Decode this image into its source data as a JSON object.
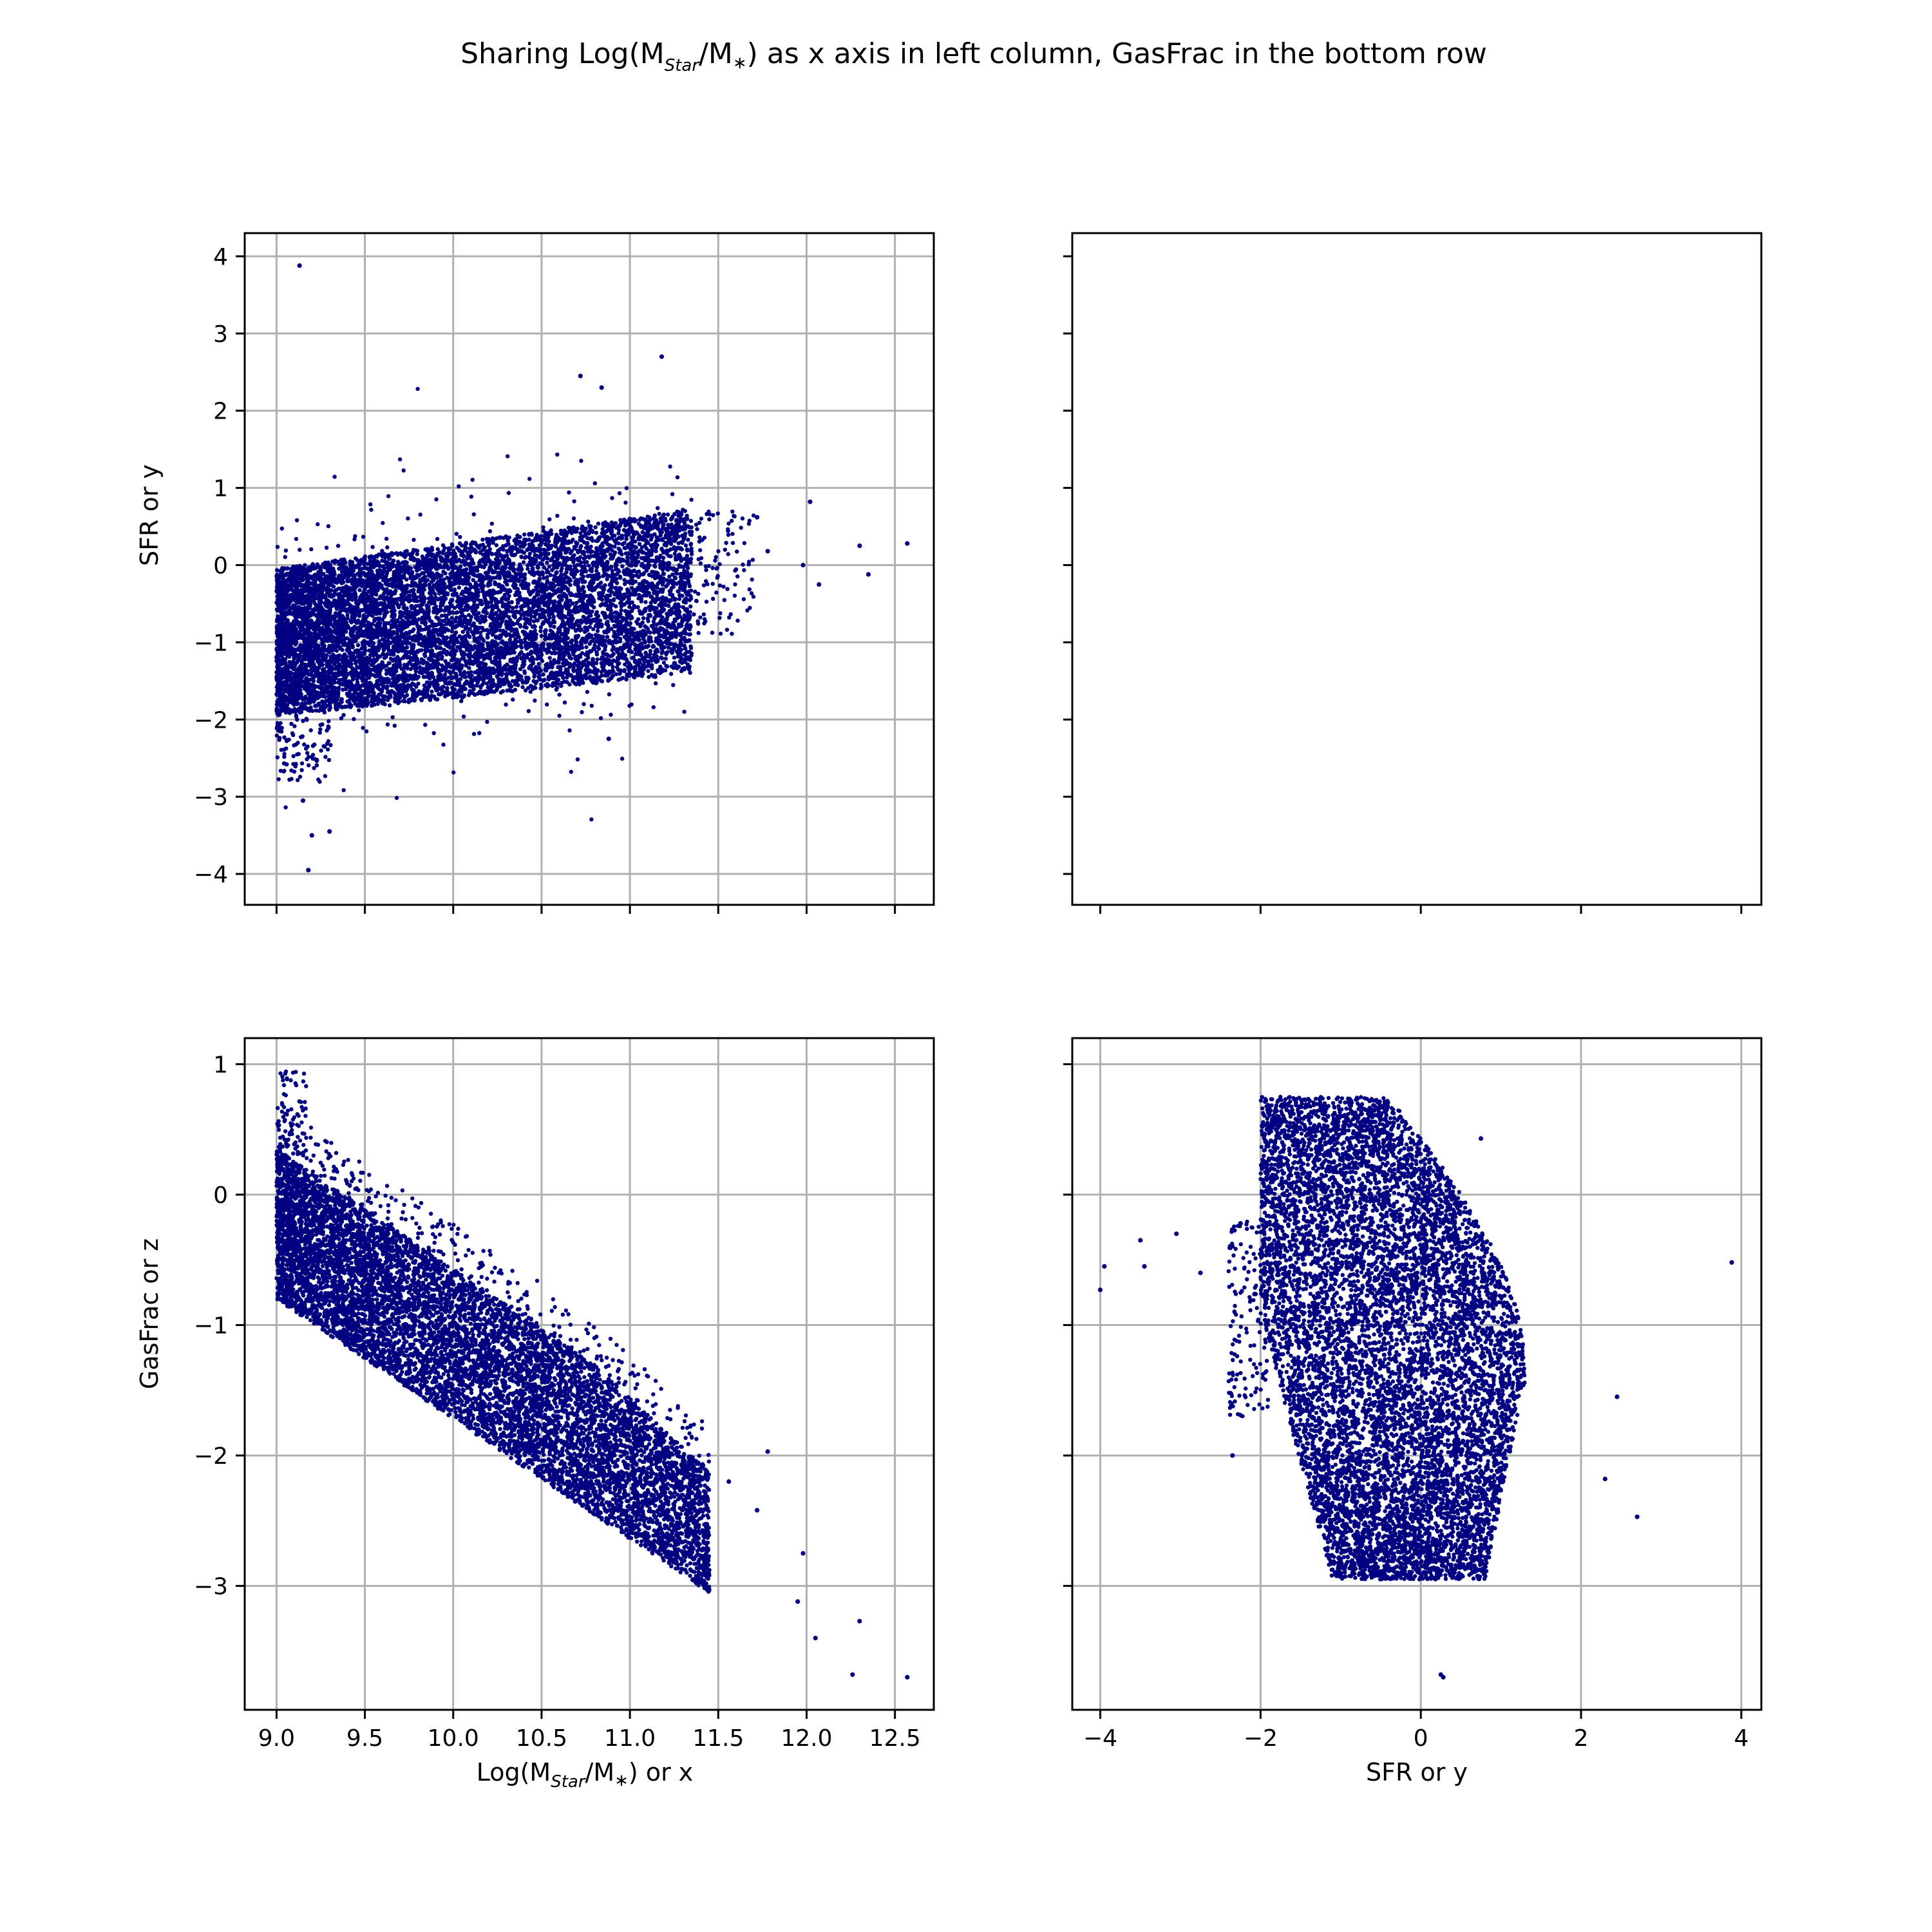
{
  "figure": {
    "suptitle_parts": [
      "Sharing Log(M",
      "Star",
      "/M",
      "∗",
      ") as x axis in left column, GasFrac in the bottom row"
    ]
  },
  "colors": {
    "points": "#000080",
    "grid": "#b0b0b0"
  },
  "chart_data": [
    {
      "id": "top-left",
      "type": "scatter",
      "xlim": [
        8.82,
        12.72
      ],
      "ylim": [
        -4.4,
        4.3
      ],
      "grid": true,
      "x_ticks": [
        9.0,
        9.5,
        10.0,
        10.5,
        11.0,
        11.5,
        12.0,
        12.5
      ],
      "x_tick_labels_visible": false,
      "y_ticks": [
        4,
        3,
        2,
        1,
        0,
        -1,
        -2,
        -3,
        -4
      ],
      "y_tick_labels": [
        "4",
        "3",
        "2",
        "1",
        "0",
        "−1",
        "−2",
        "−3",
        "−4"
      ],
      "ylabel": "SFR or y",
      "points_approx": {
        "note_x_range": [
          9.0,
          12.6
        ],
        "outliers": [
          [
            9.13,
            3.88
          ],
          [
            10.72,
            2.45
          ],
          [
            10.84,
            2.3
          ],
          [
            11.18,
            2.7
          ],
          [
            12.02,
            0.82
          ],
          [
            12.3,
            0.25
          ],
          [
            12.57,
            0.28
          ],
          [
            12.35,
            -0.12
          ],
          [
            12.07,
            -0.25
          ],
          [
            11.98,
            0.0
          ],
          [
            11.72,
            0.62
          ],
          [
            11.78,
            0.18
          ],
          [
            9.18,
            -3.95
          ],
          [
            9.2,
            -3.5
          ],
          [
            9.3,
            -3.45
          ],
          [
            9.15,
            -3.05
          ],
          [
            10.88,
            -2.25
          ]
        ]
      }
    },
    {
      "id": "top-right",
      "type": "scatter",
      "empty": true,
      "x_ticks": [
        -4,
        -2,
        0,
        2,
        4
      ],
      "x_tick_labels_visible": false,
      "y_ticks": [
        4,
        3,
        2,
        1,
        0,
        -1,
        -2,
        -3,
        -4
      ],
      "y_tick_labels_visible": false,
      "grid": false
    },
    {
      "id": "bottom-left",
      "type": "scatter",
      "xlim": [
        8.82,
        12.72
      ],
      "ylim": [
        -3.95,
        1.2
      ],
      "grid": true,
      "x_ticks": [
        9.0,
        9.5,
        10.0,
        10.5,
        11.0,
        11.5,
        12.0,
        12.5
      ],
      "x_tick_labels": [
        "9.0",
        "9.5",
        "10.0",
        "10.5",
        "11.0",
        "11.5",
        "12.0",
        "12.5"
      ],
      "y_ticks": [
        1,
        0,
        -1,
        -2,
        -3
      ],
      "y_tick_labels": [
        "1",
        "0",
        "−1",
        "−2",
        "−3"
      ],
      "ylabel": "GasFrac or z",
      "xlabel_parts": [
        "Log(M",
        "Star",
        "/M",
        "∗",
        ") or x"
      ],
      "points_approx": {
        "outliers": [
          [
            12.3,
            -3.27
          ],
          [
            12.26,
            -3.68
          ],
          [
            12.57,
            -3.7
          ],
          [
            12.05,
            -3.4
          ],
          [
            11.98,
            -2.75
          ],
          [
            11.95,
            -3.12
          ],
          [
            11.78,
            -1.97
          ],
          [
            11.72,
            -2.42
          ],
          [
            11.56,
            -2.2
          ]
        ]
      }
    },
    {
      "id": "bottom-right",
      "type": "scatter",
      "xlim": [
        -4.35,
        4.25
      ],
      "ylim": [
        -3.95,
        1.2
      ],
      "grid": true,
      "x_ticks": [
        -4,
        -2,
        0,
        2,
        4
      ],
      "x_tick_labels": [
        "−4",
        "−2",
        "0",
        "2",
        "4"
      ],
      "y_ticks": [
        1,
        0,
        -1,
        -2,
        -3
      ],
      "y_tick_labels_visible": false,
      "xlabel": "SFR or y",
      "points_approx": {
        "outliers": [
          [
            -4.0,
            -0.73
          ],
          [
            -3.95,
            -0.55
          ],
          [
            -3.5,
            -0.35
          ],
          [
            -3.45,
            -0.55
          ],
          [
            -3.05,
            -0.3
          ],
          [
            -2.75,
            -0.6
          ],
          [
            -2.25,
            -0.22
          ],
          [
            -2.35,
            -2.0
          ],
          [
            0.75,
            0.43
          ],
          [
            2.45,
            -1.55
          ],
          [
            2.3,
            -2.18
          ],
          [
            2.7,
            -2.47
          ],
          [
            3.88,
            -0.52
          ],
          [
            0.28,
            -3.7
          ],
          [
            0.25,
            -3.68
          ]
        ]
      }
    }
  ]
}
